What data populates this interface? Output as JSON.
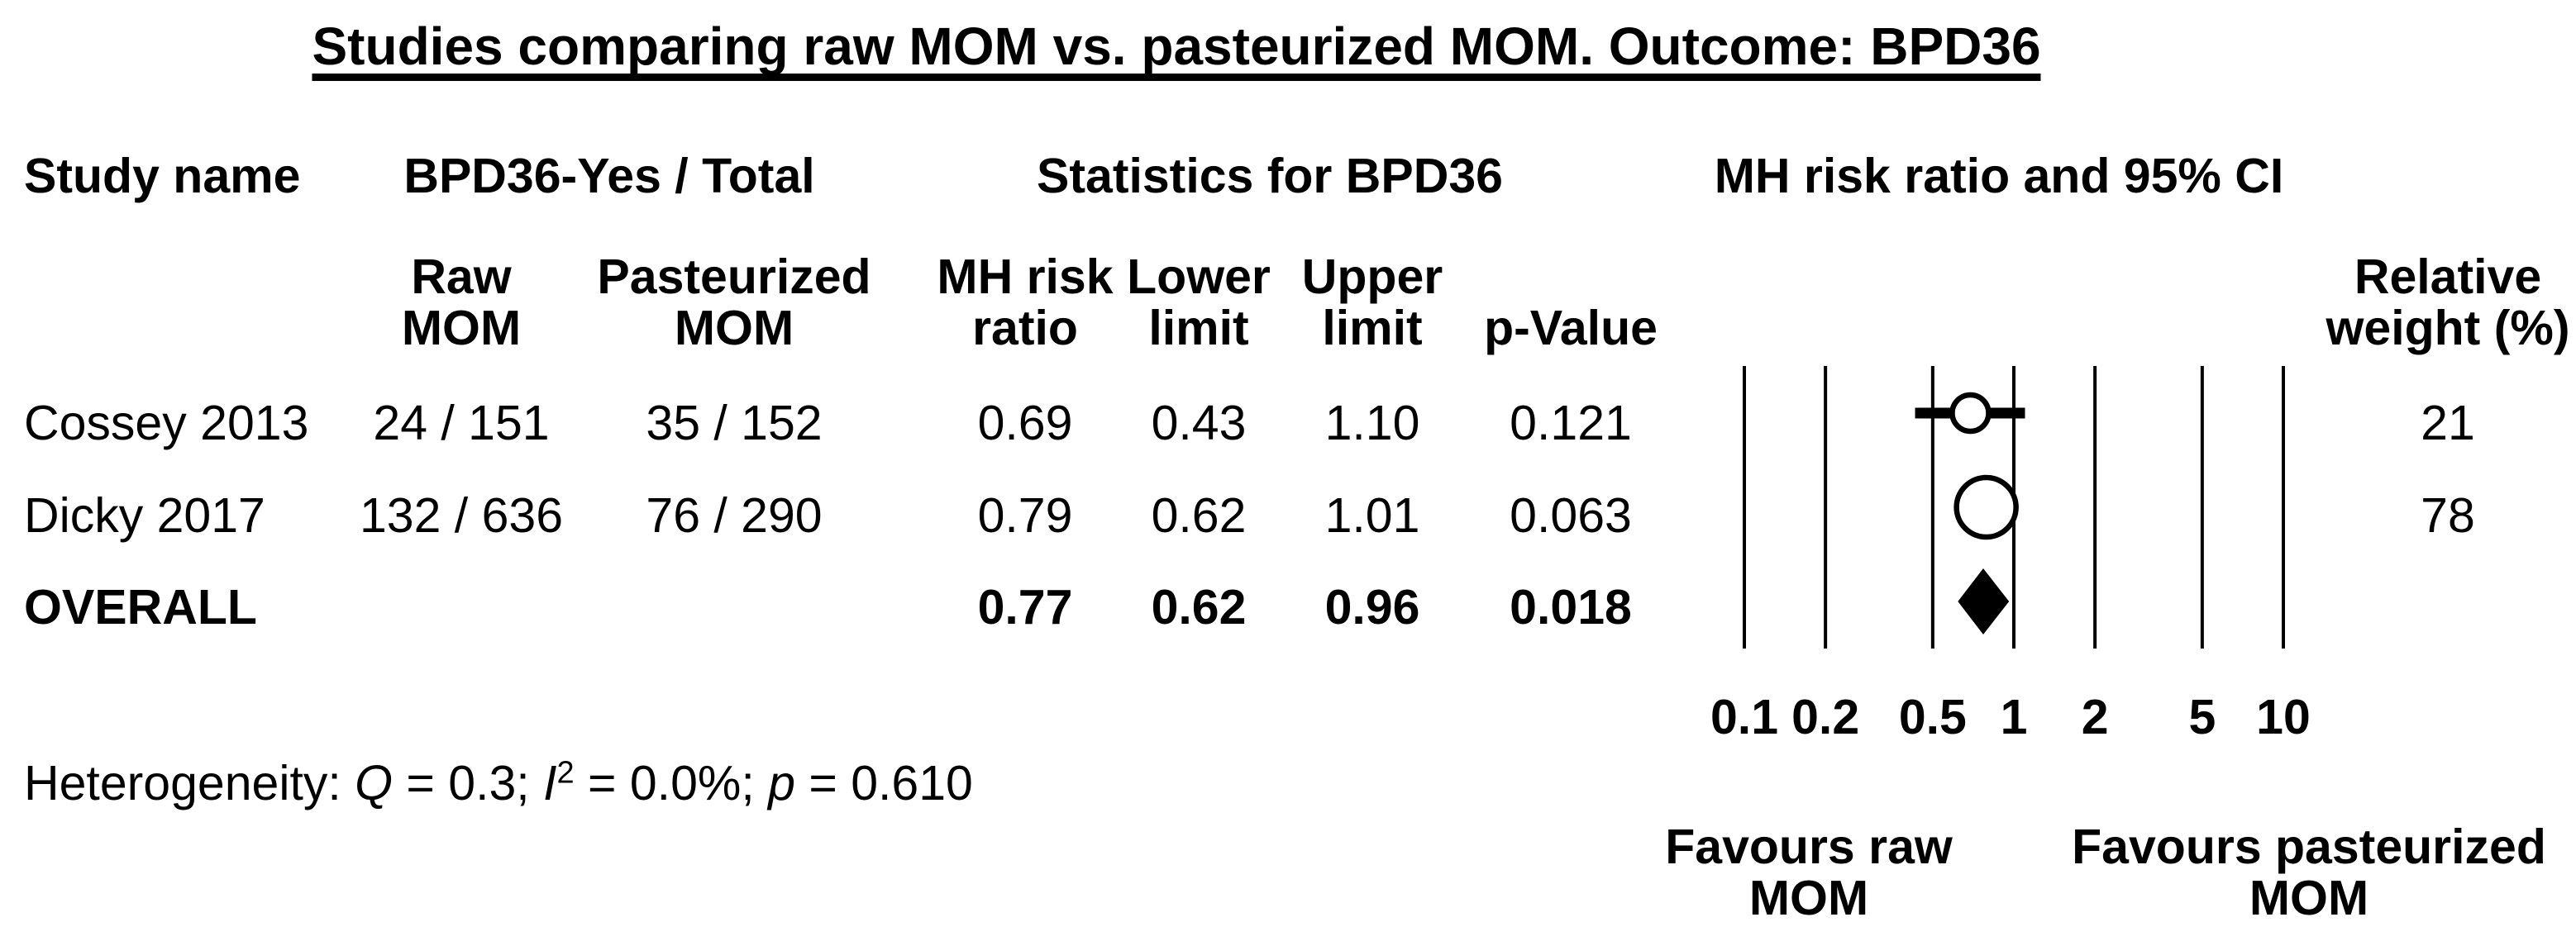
{
  "title": "Studies comparing raw MOM vs. pasteurized MOM. Outcome: BPD36",
  "headers": {
    "study_name": "Study name",
    "events_group": "BPD36-Yes / Total",
    "stats_group": "Statistics for BPD36",
    "plot_group": "MH risk ratio and 95% CI",
    "raw_line1": "Raw",
    "raw_line2": "MOM",
    "pasteurized_line1": "Pasteurized",
    "pasteurized_line2": "MOM",
    "rr_line1": "MH risk",
    "rr_line2": "ratio",
    "lower_line1": "Lower",
    "lower_line2": "limit",
    "upper_line1": "Upper",
    "upper_line2": "limit",
    "pvalue": "p-Value",
    "weight_line1": "Relative",
    "weight_line2": "weight (%)"
  },
  "rows": [
    {
      "study": "Cossey 2013",
      "raw": "24 / 151",
      "pasteurized": "35 / 152",
      "rr": "0.69",
      "lower": "0.43",
      "upper": "1.10",
      "p": "0.121",
      "weight": "21"
    },
    {
      "study": "Dicky 2017",
      "raw": "132 / 636",
      "pasteurized": "76 / 290",
      "rr": "0.79",
      "lower": "0.62",
      "upper": "1.01",
      "p": "0.063",
      "weight": "78"
    },
    {
      "study": "OVERALL",
      "raw": "",
      "pasteurized": "",
      "rr": "0.77",
      "lower": "0.62",
      "upper": "0.96",
      "p": "0.018",
      "weight": ""
    }
  ],
  "heterogeneity": {
    "label": "Heterogeneity: ",
    "q_var": "Q",
    "q_text": " = 0.3; ",
    "i_var": "I",
    "i_sup": "2",
    "i_text": " = 0.0%; ",
    "p_var": "p",
    "p_text": " = 0.610"
  },
  "favours_left": {
    "line1": "Favours raw",
    "line2": "MOM"
  },
  "favours_right": {
    "line1": "Favours pasteurized",
    "line2": "MOM"
  },
  "chart_data": {
    "type": "forest",
    "title": "Studies comparing raw MOM vs. pasteurized MOM. Outcome: BPD36",
    "effect_measure": "MH risk ratio and 95% CI",
    "x_scale": "log10",
    "axis": {
      "min": 0.1,
      "max": 10,
      "ticks": [
        0.1,
        0.2,
        0.5,
        1,
        2,
        5,
        10
      ],
      "tick_labels": [
        "0.1",
        "0.2",
        "0.5",
        "1",
        "2",
        "5",
        "10"
      ]
    },
    "studies": [
      {
        "name": "Cossey 2013",
        "events_raw": 24,
        "total_raw": 151,
        "events_pasteurized": 35,
        "total_pasteurized": 152,
        "rr": 0.69,
        "ci_lower": 0.43,
        "ci_upper": 1.1,
        "p_value": 0.121,
        "relative_weight_pct": 21,
        "marker": "circle",
        "marker_radius": 22
      },
      {
        "name": "Dicky 2017",
        "events_raw": 132,
        "total_raw": 636,
        "events_pasteurized": 76,
        "total_pasteurized": 290,
        "rr": 0.79,
        "ci_lower": 0.62,
        "ci_upper": 1.01,
        "p_value": 0.063,
        "relative_weight_pct": 78,
        "marker": "circle",
        "marker_radius": 36
      },
      {
        "name": "OVERALL",
        "rr": 0.77,
        "ci_lower": 0.62,
        "ci_upper": 0.96,
        "p_value": 0.018,
        "marker": "diamond"
      }
    ],
    "heterogeneity": {
      "Q": 0.3,
      "I2_percent": 0.0,
      "p": 0.61
    },
    "favours_left_label": "Favours raw MOM",
    "favours_right_label": "Favours pasteurized MOM",
    "legend_position": "none",
    "grid": "vertical-reference-lines",
    "colors": {
      "foreground": "#000000",
      "background": "#ffffff"
    }
  }
}
